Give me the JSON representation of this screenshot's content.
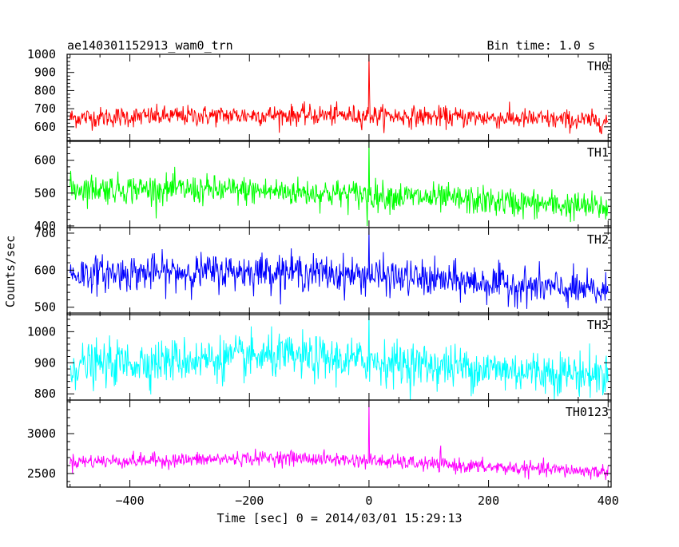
{
  "header": {
    "title": "ae140301152913_wam0_trn",
    "bin_time": "Bin time: 1.0 s"
  },
  "chart_data": {
    "type": "line",
    "xlabel": "Time [sec] 0 = 2014/03/01 15:29:13",
    "ylabel": "Counts/sec",
    "xlim": [
      -505,
      405
    ],
    "xticks": [
      -400,
      -200,
      0,
      200,
      400
    ],
    "x_start": -500,
    "x_end": 400,
    "x_step": 1,
    "panels": [
      {
        "name": "TH0",
        "color": "#ff0000",
        "ylim": [
          520,
          1000
        ],
        "yticks": [
          600,
          700,
          800,
          900,
          1000
        ],
        "trend": {
          "x": [
            -500,
            -300,
            -150,
            0,
            200,
            400
          ],
          "y": [
            650,
            660,
            665,
            662,
            650,
            630
          ]
        },
        "noise_sd": 28,
        "spikes": [
          {
            "x": 0,
            "y": 1000
          },
          {
            "x": 1,
            "y": 780
          }
        ]
      },
      {
        "name": "TH1",
        "color": "#00ff00",
        "ylim": [
          395,
          660
        ],
        "yticks": [
          400,
          500,
          600
        ],
        "trend": {
          "x": [
            -500,
            -300,
            -150,
            0,
            200,
            400
          ],
          "y": [
            515,
            510,
            505,
            495,
            475,
            455
          ]
        },
        "noise_sd": 22,
        "spikes": [
          {
            "x": 0,
            "y": 660
          },
          {
            "x": -3,
            "y": 400
          }
        ]
      },
      {
        "name": "TH2",
        "color": "#0000ff",
        "ylim": [
          480,
          715
        ],
        "yticks": [
          500,
          600,
          700
        ],
        "trend": {
          "x": [
            -500,
            -300,
            -150,
            0,
            200,
            400
          ],
          "y": [
            590,
            595,
            598,
            585,
            565,
            540
          ]
        },
        "noise_sd": 24,
        "spikes": [
          {
            "x": 0,
            "y": 715
          }
        ]
      },
      {
        "name": "TH3",
        "color": "#00ffff",
        "ylim": [
          780,
          1060
        ],
        "yticks": [
          800,
          900,
          1000
        ],
        "trend": {
          "x": [
            -500,
            -300,
            -150,
            0,
            200,
            400
          ],
          "y": [
            890,
            910,
            920,
            905,
            880,
            860
          ]
        },
        "noise_sd": 35,
        "spikes": [
          {
            "x": 0,
            "y": 1060
          }
        ]
      },
      {
        "name": "TH0123",
        "color": "#ff00ff",
        "ylim": [
          2330,
          3420
        ],
        "yticks": [
          2500,
          3000
        ],
        "trend": {
          "x": [
            -500,
            -300,
            -150,
            0,
            200,
            400
          ],
          "y": [
            2650,
            2670,
            2700,
            2660,
            2580,
            2520
          ]
        },
        "noise_sd": 45,
        "spikes": [
          {
            "x": 0,
            "y": 3420
          },
          {
            "x": 120,
            "y": 2850
          }
        ]
      }
    ]
  }
}
